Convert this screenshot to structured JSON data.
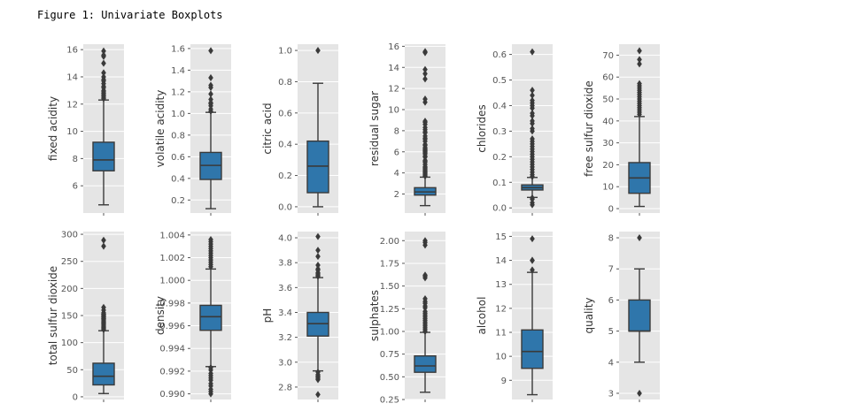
{
  "figure": {
    "title": "Figure 1: Univariate Boxplots"
  },
  "colors": {
    "box_fill": "#2f76ab",
    "panel_bg": "#e5e5e5",
    "grid": "#ffffff",
    "line": "#3a3a3a",
    "label": "#555555"
  },
  "chart_data": [
    {
      "type": "box",
      "xlabel": "",
      "ylabel": "fixed acidity",
      "ylim": [
        4.0,
        16.4
      ],
      "ticks": [
        6,
        8,
        10,
        12,
        14,
        16
      ],
      "tick_labels": [
        "6",
        "8",
        "10",
        "12",
        "14",
        "16"
      ],
      "whisker_low": 4.6,
      "q1": 7.1,
      "median": 7.9,
      "q3": 9.2,
      "whisker_high": 12.3,
      "outliers": [
        12.4,
        12.5,
        12.6,
        12.7,
        12.8,
        12.9,
        13.0,
        13.2,
        13.3,
        13.5,
        13.7,
        13.8,
        14.0,
        14.3,
        15.0,
        15.5,
        15.6,
        15.9
      ]
    },
    {
      "type": "box",
      "xlabel": "",
      "ylabel": "volatile acidity",
      "ylim": [
        0.08,
        1.64
      ],
      "ticks": [
        0.2,
        0.4,
        0.6,
        0.8,
        1.0,
        1.2,
        1.4,
        1.6
      ],
      "tick_labels": [
        "0.2",
        "0.4",
        "0.6",
        "0.8",
        "1.0",
        "1.2",
        "1.4",
        "1.6"
      ],
      "whisker_low": 0.12,
      "q1": 0.39,
      "median": 0.52,
      "q3": 0.64,
      "whisker_high": 1.01,
      "outliers": [
        1.02,
        1.04,
        1.07,
        1.09,
        1.1,
        1.13,
        1.18,
        1.24,
        1.26,
        1.33,
        1.58
      ]
    },
    {
      "type": "box",
      "xlabel": "",
      "ylabel": "citric acid",
      "ylim": [
        -0.04,
        1.04
      ],
      "ticks": [
        0.0,
        0.2,
        0.4,
        0.6,
        0.8,
        1.0
      ],
      "tick_labels": [
        "0.0",
        "0.2",
        "0.4",
        "0.6",
        "0.8",
        "1.0"
      ],
      "whisker_low": 0.0,
      "q1": 0.09,
      "median": 0.26,
      "q3": 0.42,
      "whisker_high": 0.79,
      "outliers": [
        1.0
      ]
    },
    {
      "type": "box",
      "xlabel": "",
      "ylabel": "residual sugar",
      "ylim": [
        0.2,
        16.2
      ],
      "ticks": [
        2,
        4,
        6,
        8,
        10,
        12,
        14,
        16
      ],
      "tick_labels": [
        "2",
        "4",
        "6",
        "8",
        "10",
        "12",
        "14",
        "16"
      ],
      "whisker_low": 0.9,
      "q1": 1.9,
      "median": 2.2,
      "q3": 2.6,
      "whisker_high": 3.6,
      "outliers": [
        3.7,
        3.8,
        3.9,
        4.0,
        4.1,
        4.2,
        4.3,
        4.4,
        4.5,
        4.6,
        4.8,
        5.0,
        5.1,
        5.2,
        5.5,
        5.6,
        5.8,
        5.9,
        6.0,
        6.1,
        6.2,
        6.3,
        6.4,
        6.6,
        6.7,
        7.0,
        7.2,
        7.3,
        7.5,
        7.8,
        7.9,
        8.1,
        8.3,
        8.6,
        8.8,
        8.9,
        10.7,
        11.0,
        12.9,
        13.4,
        13.8,
        15.4,
        15.5
      ]
    },
    {
      "type": "box",
      "xlabel": "",
      "ylabel": "chlorides",
      "ylim": [
        -0.02,
        0.64
      ],
      "ticks": [
        0.0,
        0.1,
        0.2,
        0.3,
        0.4,
        0.5,
        0.6
      ],
      "tick_labels": [
        "0.0",
        "0.1",
        "0.2",
        "0.3",
        "0.4",
        "0.5",
        "0.6"
      ],
      "whisker_low": 0.041,
      "q1": 0.07,
      "median": 0.079,
      "q3": 0.09,
      "whisker_high": 0.119,
      "outliers": [
        0.012,
        0.02,
        0.034,
        0.039,
        0.122,
        0.13,
        0.14,
        0.15,
        0.16,
        0.17,
        0.18,
        0.19,
        0.2,
        0.21,
        0.22,
        0.23,
        0.24,
        0.25,
        0.26,
        0.27,
        0.3,
        0.31,
        0.33,
        0.34,
        0.36,
        0.37,
        0.39,
        0.4,
        0.41,
        0.42,
        0.44,
        0.46,
        0.61
      ]
    },
    {
      "type": "box",
      "xlabel": "",
      "ylabel": "free sulfur dioxide",
      "ylim": [
        -2,
        75
      ],
      "ticks": [
        0,
        10,
        20,
        30,
        40,
        50,
        60,
        70
      ],
      "tick_labels": [
        "0",
        "10",
        "20",
        "30",
        "40",
        "50",
        "60",
        "70"
      ],
      "whisker_low": 1,
      "q1": 7,
      "median": 14,
      "q3": 21,
      "whisker_high": 42,
      "outliers": [
        43,
        44,
        45,
        46,
        47,
        48,
        49,
        50,
        51,
        52,
        53,
        54,
        55,
        56,
        57,
        66,
        68,
        72
      ]
    },
    {
      "type": "box",
      "xlabel": "",
      "ylabel": "total sulfur dioxide",
      "ylim": [
        -5,
        305
      ],
      "ticks": [
        0,
        50,
        100,
        150,
        200,
        250,
        300
      ],
      "tick_labels": [
        "0",
        "50",
        "100",
        "150",
        "200",
        "250",
        "300"
      ],
      "whisker_low": 6,
      "q1": 22,
      "median": 38,
      "q3": 62,
      "whisker_high": 122,
      "outliers": [
        124,
        126,
        128,
        130,
        132,
        134,
        136,
        138,
        140,
        142,
        144,
        145,
        147,
        148,
        149,
        151,
        152,
        153,
        155,
        160,
        165,
        278,
        289
      ]
    },
    {
      "type": "box",
      "xlabel": "",
      "ylabel": "density",
      "ylim": [
        0.9895,
        1.0043
      ],
      "ticks": [
        0.99,
        0.992,
        0.994,
        0.996,
        0.998,
        1.0,
        1.002,
        1.004
      ],
      "tick_labels": [
        "0.990",
        "0.992",
        "0.994",
        "0.996",
        "0.998",
        "1.000",
        "1.002",
        "1.004"
      ],
      "whisker_low": 0.9924,
      "q1": 0.9956,
      "median": 0.9968,
      "q3": 0.9978,
      "whisker_high": 1.001,
      "outliers": [
        0.99,
        0.9902,
        0.9904,
        0.9907,
        0.9909,
        0.9912,
        0.9914,
        0.9916,
        0.9918,
        0.9921,
        0.9923,
        1.0012,
        1.0014,
        1.0016,
        1.0018,
        1.002,
        1.0022,
        1.0024,
        1.0026,
        1.0028,
        1.003,
        1.0032,
        1.0034,
        1.0036
      ]
    },
    {
      "type": "box",
      "xlabel": "",
      "ylabel": "pH",
      "ylim": [
        2.7,
        4.05
      ],
      "ticks": [
        2.8,
        3.0,
        3.2,
        3.4,
        3.6,
        3.8,
        4.0
      ],
      "tick_labels": [
        "2.8",
        "3.0",
        "3.2",
        "3.4",
        "3.6",
        "3.8",
        "4.0"
      ],
      "whisker_low": 2.93,
      "q1": 3.21,
      "median": 3.31,
      "q3": 3.4,
      "whisker_high": 3.68,
      "outliers": [
        2.74,
        2.86,
        2.87,
        2.88,
        2.89,
        2.9,
        2.92,
        3.69,
        3.7,
        3.71,
        3.72,
        3.74,
        3.75,
        3.78,
        3.85,
        3.9,
        4.01
      ]
    },
    {
      "type": "box",
      "xlabel": "",
      "ylabel": "sulphates",
      "ylim": [
        0.25,
        2.1
      ],
      "ticks": [
        0.25,
        0.5,
        0.75,
        1.0,
        1.25,
        1.5,
        1.75,
        2.0
      ],
      "tick_labels": [
        "0.25",
        "0.50",
        "0.75",
        "1.00",
        "1.25",
        "1.50",
        "1.75",
        "2.00"
      ],
      "whisker_low": 0.33,
      "q1": 0.55,
      "median": 0.62,
      "q3": 0.73,
      "whisker_high": 0.99,
      "outliers": [
        1.0,
        1.02,
        1.04,
        1.06,
        1.08,
        1.1,
        1.12,
        1.14,
        1.16,
        1.18,
        1.2,
        1.22,
        1.26,
        1.28,
        1.31,
        1.33,
        1.36,
        1.59,
        1.61,
        1.62,
        1.95,
        1.98,
        2.0
      ]
    },
    {
      "type": "box",
      "xlabel": "",
      "ylabel": "alcohol",
      "ylim": [
        8.2,
        15.2
      ],
      "ticks": [
        9,
        10,
        11,
        12,
        13,
        14,
        15
      ],
      "tick_labels": [
        "9",
        "10",
        "11",
        "12",
        "13",
        "14",
        "15"
      ],
      "whisker_low": 8.4,
      "q1": 9.5,
      "median": 10.2,
      "q3": 11.1,
      "whisker_high": 13.5,
      "outliers": [
        13.6,
        14.0,
        14.0,
        14.9
      ]
    },
    {
      "type": "box",
      "xlabel": "",
      "ylabel": "quality",
      "ylim": [
        2.8,
        8.2
      ],
      "ticks": [
        3,
        4,
        5,
        6,
        7,
        8
      ],
      "tick_labels": [
        "3",
        "4",
        "5",
        "6",
        "7",
        "8"
      ],
      "whisker_low": 4,
      "q1": 5,
      "median": 5,
      "q3": 6,
      "whisker_high": 7,
      "outliers": [
        3,
        8
      ]
    }
  ]
}
